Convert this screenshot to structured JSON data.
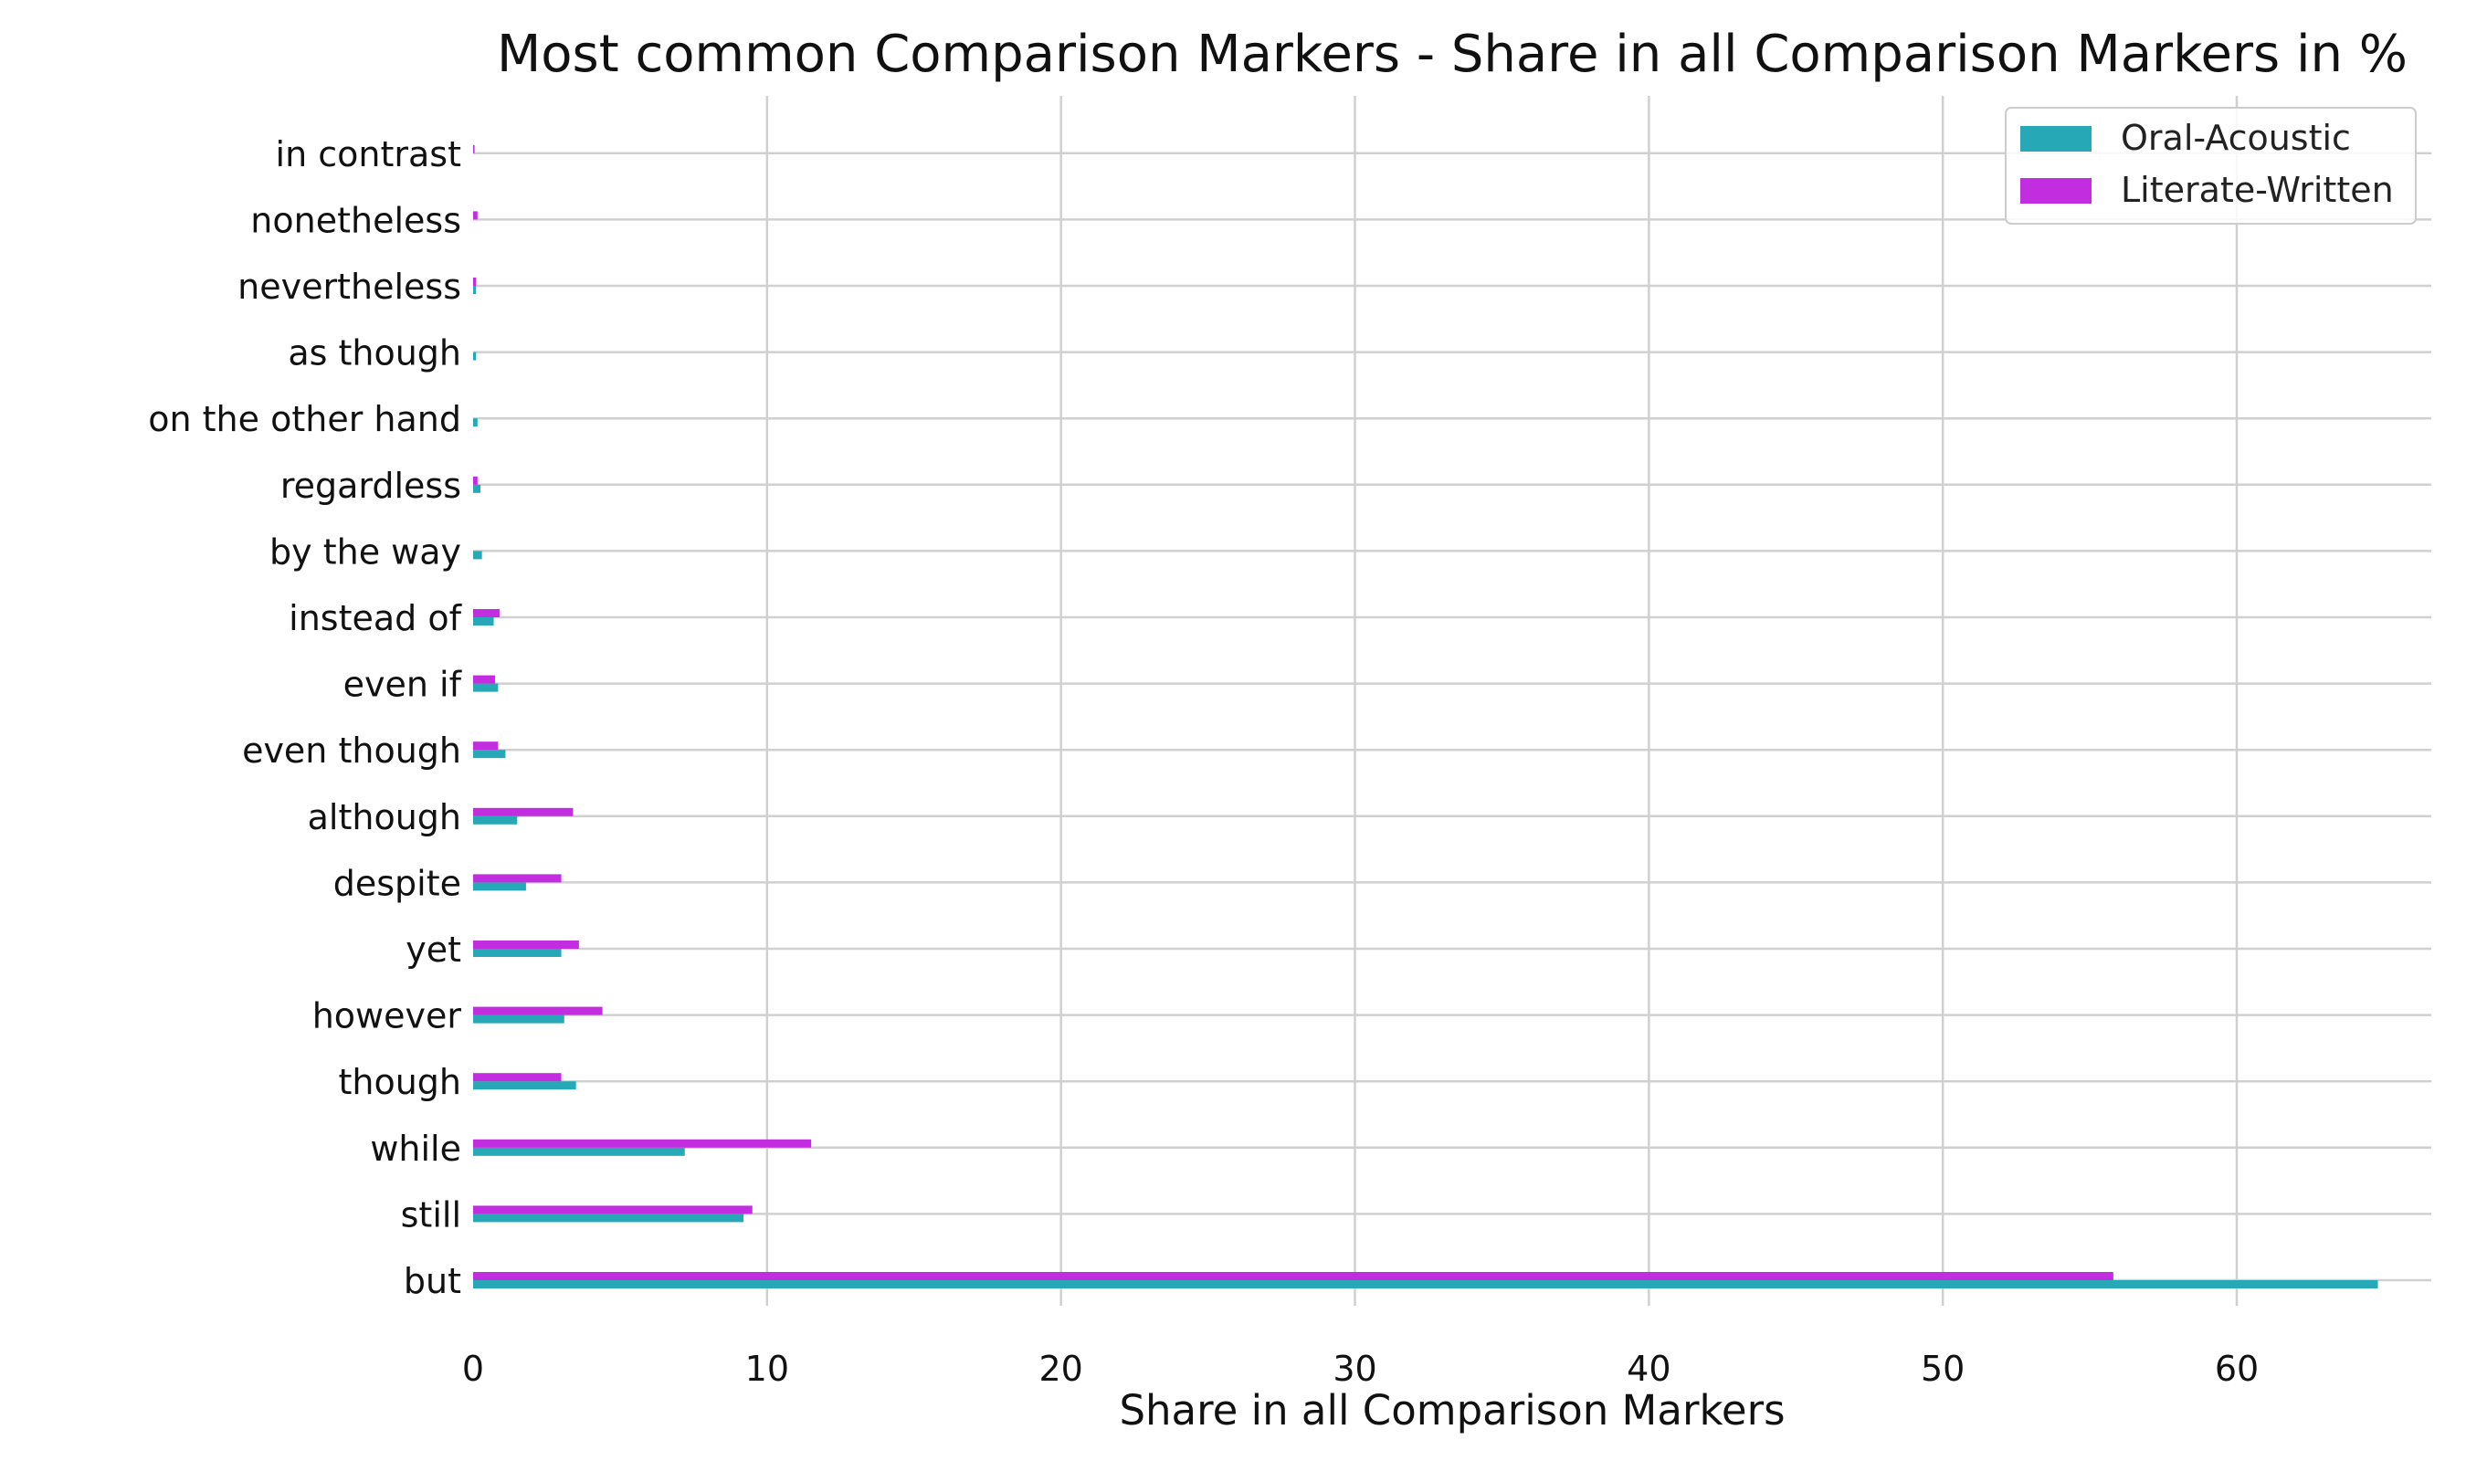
{
  "chart_data": {
    "type": "bar",
    "orientation": "horizontal",
    "title": "Most common Comparison Markers - Share in all Comparison Markers in %",
    "xlabel": "Share in all Comparison Markers",
    "ylabel": "",
    "xlim": [
      0,
      68
    ],
    "xticks": [
      0,
      10,
      20,
      30,
      40,
      50,
      60
    ],
    "grid": true,
    "legend_position": "top-right",
    "categories": [
      "but",
      "still",
      "while",
      "though",
      "however",
      "yet",
      "despite",
      "although",
      "even though",
      "even if",
      "instead of",
      "by the way",
      "regardless",
      "on the other hand",
      "as though",
      "nevertheless",
      "nonetheless",
      "in contrast"
    ],
    "series": [
      {
        "name": "Oral-Acoustic",
        "color": "#27a8b6",
        "values": [
          64.8,
          9.2,
          7.2,
          3.5,
          3.1,
          3.0,
          1.8,
          1.5,
          1.1,
          0.85,
          0.7,
          0.3,
          0.25,
          0.15,
          0.1,
          0.1,
          0.0,
          0.0
        ]
      },
      {
        "name": "Literate-Written",
        "color": "#c22ddf",
        "values": [
          55.8,
          9.5,
          11.5,
          3.0,
          4.4,
          3.6,
          3.0,
          3.4,
          0.85,
          0.75,
          0.9,
          0.0,
          0.15,
          0.0,
          0.0,
          0.1,
          0.15,
          0.05
        ]
      }
    ]
  }
}
